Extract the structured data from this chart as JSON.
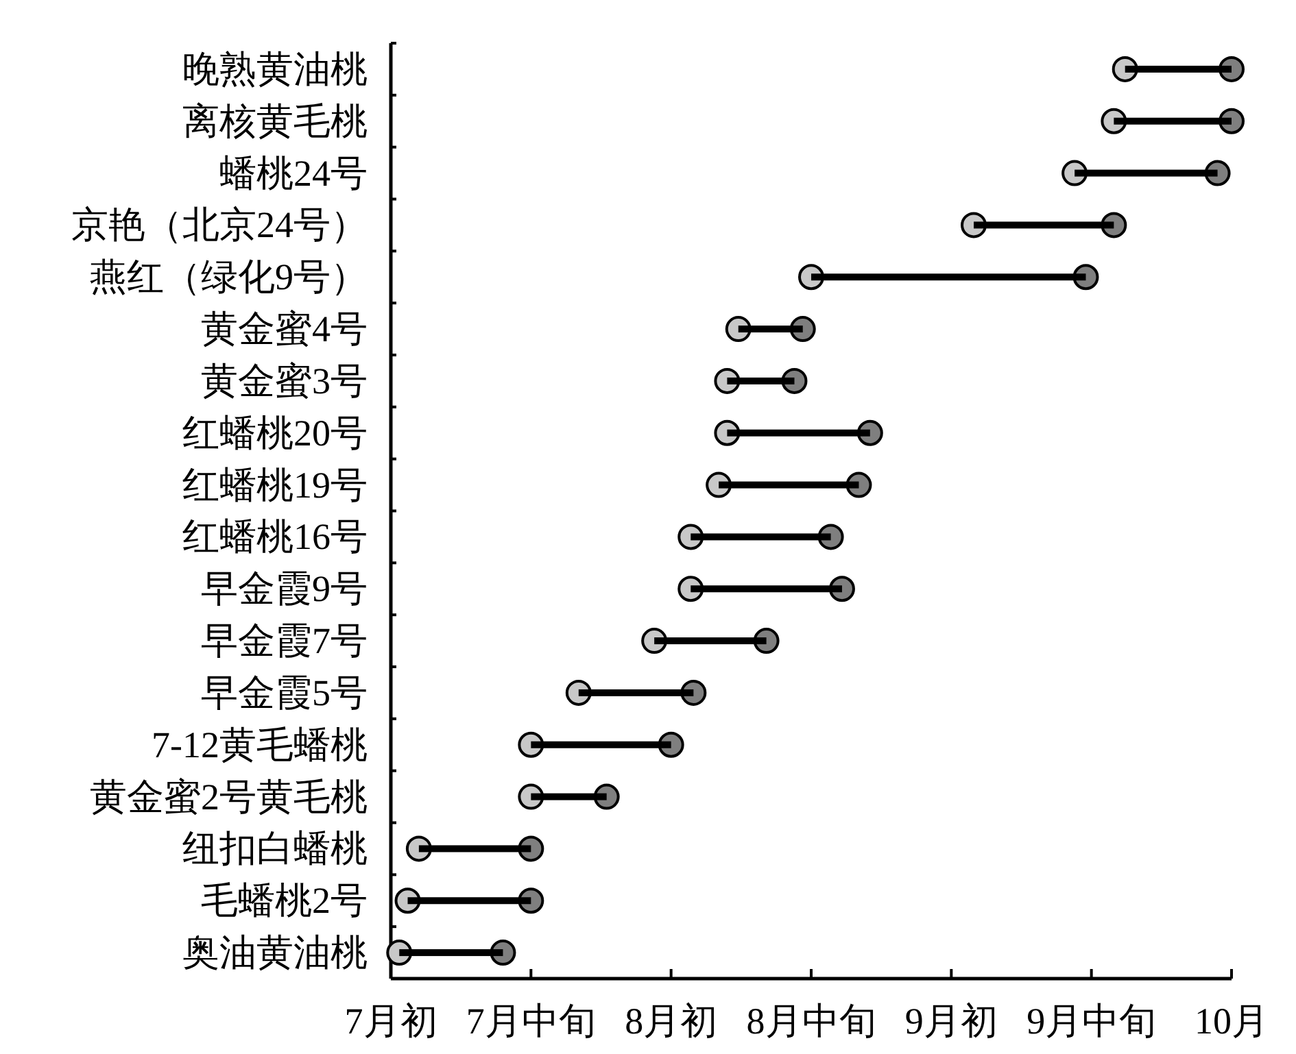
{
  "chart_data": {
    "type": "bar",
    "orientation": "horizontal",
    "categories": [
      "晚熟黄油桃",
      "离核黄毛桃",
      "蟠桃24号",
      "京艳（北京24号）",
      "燕红（绿化9号）",
      "黄金蜜4号",
      "黄金蜜3号",
      "红蟠桃20号",
      "红蟠桃19号",
      "红蟠桃16号",
      "早金霞9号",
      "早金霞7号",
      "早金霞5号",
      "7-12黄毛蟠桃",
      "黄金蜜2号黄毛桃",
      "纽扣白蟠桃",
      "毛蟠桃2号",
      "奥油黄油桃"
    ],
    "xlim": [
      7,
      10
    ],
    "xticks": [
      {
        "value": 7,
        "label": "7月初"
      },
      {
        "value": 7.5,
        "label": "7月中旬"
      },
      {
        "value": 8,
        "label": "8月初"
      },
      {
        "value": 8.5,
        "label": "8月中旬"
      },
      {
        "value": 9,
        "label": "9月初"
      },
      {
        "value": 9.5,
        "label": "9月中旬"
      },
      {
        "value": 10,
        "label": "10月"
      }
    ],
    "marker": "circle",
    "series": [
      {
        "color": "#000000",
        "base": [
          9.62,
          9.58,
          9.44,
          9.08,
          8.5,
          8.24,
          8.2,
          8.2,
          8.17,
          8.07,
          8.07,
          7.94,
          7.67,
          7.5,
          7.5,
          7.1,
          7.06,
          7.03
        ],
        "values": [
          0.38,
          0.42,
          0.51,
          0.5,
          0.98,
          0.23,
          0.24,
          0.51,
          0.5,
          0.5,
          0.54,
          0.4,
          0.41,
          0.5,
          0.27,
          0.4,
          0.44,
          0.37
        ]
      },
      {
        "type": "scatter",
        "color": "#c8c8c8",
        "values": [
          9.62,
          9.58,
          9.44,
          9.08,
          8.5,
          8.24,
          8.2,
          8.2,
          8.17,
          8.07,
          8.07,
          7.94,
          7.67,
          7.5,
          7.5,
          7.1,
          7.06,
          7.03
        ]
      },
      {
        "type": "scatter",
        "color": "#7f7f7f",
        "values": [
          10.0,
          10.0,
          9.95,
          9.58,
          9.48,
          8.47,
          8.44,
          8.71,
          8.67,
          8.57,
          8.61,
          8.34,
          8.08,
          8.0,
          7.77,
          7.5,
          7.5,
          7.4
        ]
      }
    ]
  }
}
